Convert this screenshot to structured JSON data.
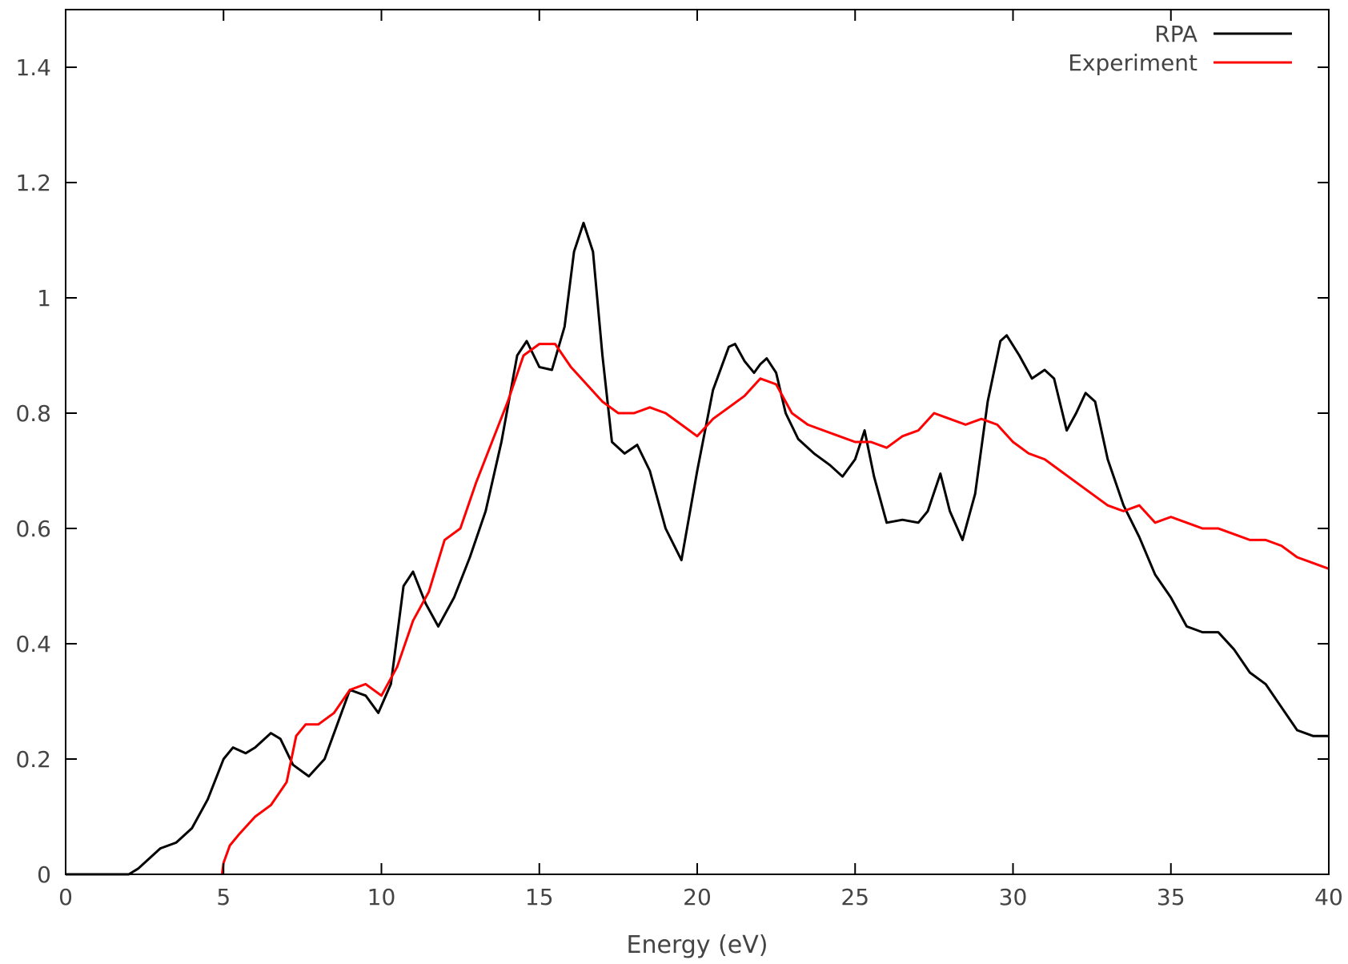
{
  "chart_data": {
    "type": "line",
    "title": "",
    "xlabel": "Energy (eV)",
    "ylabel": "",
    "xlim": [
      0,
      40
    ],
    "ylim": [
      0,
      1.5
    ],
    "xticks": [
      0,
      5,
      10,
      15,
      20,
      25,
      30,
      35,
      40
    ],
    "xtick_labels": [
      "0",
      "5",
      "10",
      "15",
      "20",
      "25",
      "30",
      "35",
      "40"
    ],
    "yticks": [
      0,
      0.2,
      0.4,
      0.6,
      0.8,
      1,
      1.2,
      1.4
    ],
    "ytick_labels": [
      "0",
      "0.2",
      "0.4",
      "0.6",
      "0.8",
      "1",
      "1.2",
      "1.4"
    ],
    "grid": false,
    "legend_position": "top-right",
    "series": [
      {
        "name": "RPA",
        "color": "#000000",
        "x": [
          0,
          1,
          2,
          2.3,
          2.7,
          3.0,
          3.5,
          4.0,
          4.5,
          5.0,
          5.3,
          5.7,
          6.0,
          6.5,
          6.8,
          7.2,
          7.7,
          8.2,
          8.6,
          9.0,
          9.5,
          9.9,
          10.3,
          10.7,
          11.0,
          11.4,
          11.8,
          12.3,
          12.8,
          13.3,
          13.8,
          14.3,
          14.6,
          15.0,
          15.4,
          15.8,
          16.1,
          16.4,
          16.7,
          17.0,
          17.3,
          17.7,
          18.1,
          18.5,
          19.0,
          19.5,
          20.0,
          20.5,
          21.0,
          21.2,
          21.5,
          21.8,
          22.0,
          22.2,
          22.5,
          22.8,
          23.2,
          23.7,
          24.2,
          24.6,
          25.0,
          25.3,
          25.6,
          26.0,
          26.5,
          27.0,
          27.3,
          27.7,
          28.0,
          28.4,
          28.8,
          29.2,
          29.6,
          29.8,
          30.2,
          30.6,
          31.0,
          31.3,
          31.7,
          32.0,
          32.3,
          32.6,
          33.0,
          33.5,
          34.0,
          34.5,
          35.0,
          35.5,
          36.0,
          36.5,
          37.0,
          37.5,
          38.0,
          38.5,
          39.0,
          39.5,
          40.0
        ],
        "y": [
          0,
          0,
          0,
          0.01,
          0.03,
          0.045,
          0.055,
          0.08,
          0.13,
          0.2,
          0.22,
          0.21,
          0.22,
          0.245,
          0.235,
          0.19,
          0.17,
          0.2,
          0.26,
          0.32,
          0.31,
          0.28,
          0.33,
          0.5,
          0.525,
          0.47,
          0.43,
          0.48,
          0.55,
          0.63,
          0.75,
          0.9,
          0.925,
          0.88,
          0.875,
          0.95,
          1.08,
          1.13,
          1.08,
          0.9,
          0.75,
          0.73,
          0.745,
          0.7,
          0.6,
          0.545,
          0.7,
          0.84,
          0.915,
          0.92,
          0.89,
          0.87,
          0.885,
          0.895,
          0.87,
          0.8,
          0.755,
          0.73,
          0.71,
          0.69,
          0.72,
          0.77,
          0.69,
          0.61,
          0.615,
          0.61,
          0.63,
          0.695,
          0.63,
          0.58,
          0.66,
          0.82,
          0.925,
          0.935,
          0.9,
          0.86,
          0.875,
          0.86,
          0.77,
          0.8,
          0.835,
          0.82,
          0.72,
          0.64,
          0.585,
          0.52,
          0.48,
          0.43,
          0.42,
          0.42,
          0.39,
          0.35,
          0.33,
          0.29,
          0.25,
          0.24,
          0.24
        ]
      },
      {
        "name": "Experiment",
        "color": "#ff0000",
        "x": [
          4.95,
          5.0,
          5.2,
          5.5,
          6.0,
          6.5,
          7.0,
          7.3,
          7.6,
          8.0,
          8.5,
          9.0,
          9.5,
          10.0,
          10.5,
          11.0,
          11.5,
          12.0,
          12.5,
          13.0,
          13.5,
          14.0,
          14.5,
          15.0,
          15.5,
          16.0,
          16.5,
          17.0,
          17.5,
          18.0,
          18.5,
          19.0,
          19.5,
          20.0,
          20.5,
          21.0,
          21.5,
          22.0,
          22.5,
          23.0,
          23.5,
          24.0,
          24.5,
          25.0,
          25.5,
          26.0,
          26.5,
          27.0,
          27.5,
          28.0,
          28.5,
          29.0,
          29.5,
          30.0,
          30.5,
          31.0,
          31.5,
          32.0,
          32.5,
          33.0,
          33.5,
          34.0,
          34.5,
          35.0,
          35.5,
          36.0,
          36.5,
          37.0,
          37.5,
          38.0,
          38.5,
          39.0,
          39.5,
          40.0
        ],
        "y": [
          0.0,
          0.02,
          0.05,
          0.07,
          0.1,
          0.12,
          0.16,
          0.24,
          0.26,
          0.26,
          0.28,
          0.32,
          0.33,
          0.31,
          0.36,
          0.44,
          0.49,
          0.58,
          0.6,
          0.68,
          0.75,
          0.82,
          0.9,
          0.92,
          0.92,
          0.88,
          0.85,
          0.82,
          0.8,
          0.8,
          0.81,
          0.8,
          0.78,
          0.76,
          0.79,
          0.81,
          0.83,
          0.86,
          0.85,
          0.8,
          0.78,
          0.77,
          0.76,
          0.75,
          0.75,
          0.74,
          0.76,
          0.77,
          0.8,
          0.79,
          0.78,
          0.79,
          0.78,
          0.75,
          0.73,
          0.72,
          0.7,
          0.68,
          0.66,
          0.64,
          0.63,
          0.64,
          0.61,
          0.62,
          0.61,
          0.6,
          0.6,
          0.59,
          0.58,
          0.58,
          0.57,
          0.55,
          0.54,
          0.53
        ]
      }
    ]
  }
}
